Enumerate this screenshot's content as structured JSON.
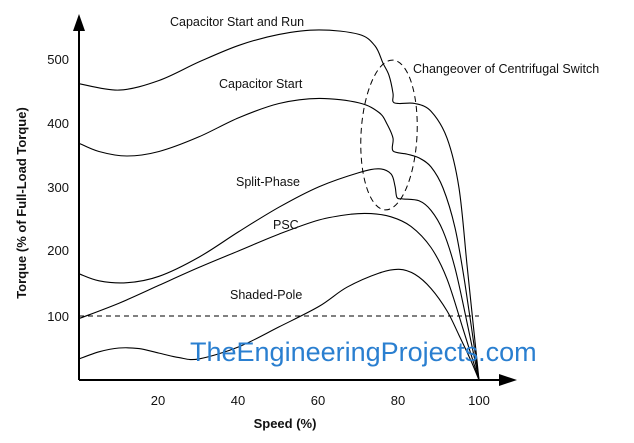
{
  "chart_data": {
    "type": "line",
    "title": "",
    "xlabel": "Speed (%)",
    "ylabel": "Torque (% of Full-Load Torque)",
    "xlim": [
      0,
      100
    ],
    "ylim": [
      0,
      600
    ],
    "x_ticks": [
      "20",
      "40",
      "60",
      "80",
      "100"
    ],
    "y_ticks": [
      "100",
      "200",
      "300",
      "400",
      "500"
    ],
    "grid": false,
    "reference_line": {
      "y": 100,
      "style": "dashed"
    },
    "series": [
      {
        "name": "Capacitor Start and Run",
        "points": [
          [
            0,
            463
          ],
          [
            10,
            453
          ],
          [
            20,
            468
          ],
          [
            30,
            497
          ],
          [
            40,
            523
          ],
          [
            50,
            540
          ],
          [
            60,
            547
          ],
          [
            70,
            540
          ],
          [
            74,
            522
          ],
          [
            76,
            495
          ],
          [
            77.5,
            476
          ],
          [
            78.5,
            448
          ],
          [
            78.5,
            435
          ],
          [
            80,
            432
          ],
          [
            84,
            432
          ],
          [
            88,
            420
          ],
          [
            92,
            378
          ],
          [
            95,
            300
          ],
          [
            97,
            180
          ],
          [
            98.5,
            90
          ],
          [
            100,
            0
          ]
        ]
      },
      {
        "name": "Capacitor Start",
        "points": [
          [
            0,
            370
          ],
          [
            5,
            357
          ],
          [
            12,
            350
          ],
          [
            20,
            357
          ],
          [
            30,
            380
          ],
          [
            40,
            410
          ],
          [
            50,
            432
          ],
          [
            60,
            440
          ],
          [
            70,
            433
          ],
          [
            75,
            418
          ],
          [
            77,
            400
          ],
          [
            78.5,
            378
          ],
          [
            78.5,
            358
          ],
          [
            82,
            353
          ],
          [
            85,
            347
          ],
          [
            88,
            333
          ],
          [
            91,
            300
          ],
          [
            94,
            238
          ],
          [
            96.5,
            150
          ],
          [
            100,
            0
          ]
        ]
      },
      {
        "name": "Split-Phase",
        "points": [
          [
            0,
            166
          ],
          [
            5,
            155
          ],
          [
            12,
            152
          ],
          [
            20,
            162
          ],
          [
            30,
            192
          ],
          [
            40,
            232
          ],
          [
            50,
            270
          ],
          [
            60,
            302
          ],
          [
            70,
            324
          ],
          [
            75,
            330
          ],
          [
            78,
            322
          ],
          [
            79,
            303
          ],
          [
            79.5,
            285
          ],
          [
            81,
            283
          ],
          [
            85,
            280
          ],
          [
            88,
            265
          ],
          [
            91,
            233
          ],
          [
            94,
            175
          ],
          [
            97,
            90
          ],
          [
            100,
            0
          ]
        ]
      },
      {
        "name": "PSC",
        "points": [
          [
            0,
            96
          ],
          [
            10,
            120
          ],
          [
            20,
            148
          ],
          [
            30,
            176
          ],
          [
            40,
            202
          ],
          [
            50,
            228
          ],
          [
            60,
            250
          ],
          [
            68,
            259
          ],
          [
            73,
            260
          ],
          [
            78,
            255
          ],
          [
            83,
            240
          ],
          [
            88,
            207
          ],
          [
            92,
            158
          ],
          [
            96,
            80
          ],
          [
            100,
            0
          ]
        ]
      },
      {
        "name": "Shaded-Pole",
        "points": [
          [
            0,
            33
          ],
          [
            5,
            44
          ],
          [
            10,
            50
          ],
          [
            15,
            49
          ],
          [
            20,
            42
          ],
          [
            25,
            35
          ],
          [
            30,
            33
          ],
          [
            40,
            52
          ],
          [
            50,
            83
          ],
          [
            60,
            115
          ],
          [
            67,
            145
          ],
          [
            75,
            167
          ],
          [
            80,
            173
          ],
          [
            84,
            165
          ],
          [
            88,
            143
          ],
          [
            92,
            108
          ],
          [
            95,
            70
          ],
          [
            98,
            30
          ],
          [
            100,
            0
          ]
        ]
      }
    ],
    "annotations": [
      {
        "text": "Changeover of Centrifugal Switch",
        "shape": "dashed-ellipse"
      }
    ]
  },
  "watermark": "TheEngineeringProjects.com"
}
